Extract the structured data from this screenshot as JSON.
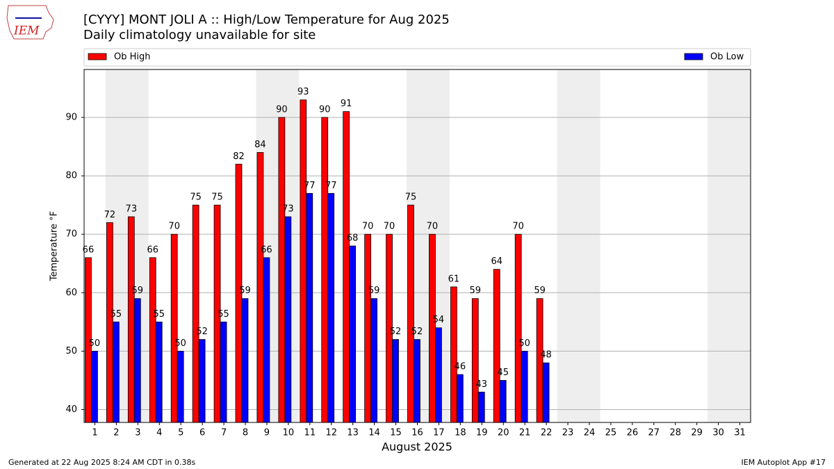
{
  "chart_data": {
    "type": "bar",
    "logo_text": "IEM",
    "title": "[CYYY] MONT JOLI A :: High/Low Temperature for Aug 2025",
    "subtitle": "Daily climatology unavailable for site",
    "ylabel": "Temperature °F",
    "xlabel": "August 2025",
    "footer_left": "Generated at 22 Aug 2025 8:24 AM CDT in 0.38s",
    "footer_right": "IEM Autoplot App #17",
    "categories": [
      "1",
      "2",
      "3",
      "4",
      "5",
      "6",
      "7",
      "8",
      "9",
      "10",
      "11",
      "12",
      "13",
      "14",
      "15",
      "16",
      "17",
      "18",
      "19",
      "20",
      "21",
      "22",
      "23",
      "24",
      "25",
      "26",
      "27",
      "28",
      "29",
      "30",
      "31"
    ],
    "series": [
      {
        "name": "Ob High",
        "color": "#ff0000",
        "values": [
          66,
          72,
          73,
          66,
          70,
          75,
          75,
          82,
          84,
          90,
          93,
          90,
          91,
          70,
          70,
          75,
          70,
          61,
          59,
          64,
          70,
          59,
          null,
          null,
          null,
          null,
          null,
          null,
          null,
          null,
          null
        ]
      },
      {
        "name": "Ob Low",
        "color": "#0000ff",
        "values": [
          50,
          55,
          59,
          55,
          50,
          52,
          55,
          59,
          66,
          73,
          77,
          77,
          68,
          59,
          52,
          52,
          54,
          46,
          43,
          45,
          50,
          48,
          null,
          null,
          null,
          null,
          null,
          null,
          null,
          null,
          null
        ]
      }
    ],
    "shaded_days": [
      [
        2,
        3
      ],
      [
        9,
        10
      ],
      [
        16,
        17
      ],
      [
        23,
        24
      ],
      [
        30,
        31
      ]
    ],
    "shade_color": "#eeeeee",
    "ylim": [
      37.8,
      98.2
    ],
    "yticks": [
      40,
      50,
      60,
      70,
      80,
      90
    ],
    "grid": true
  }
}
